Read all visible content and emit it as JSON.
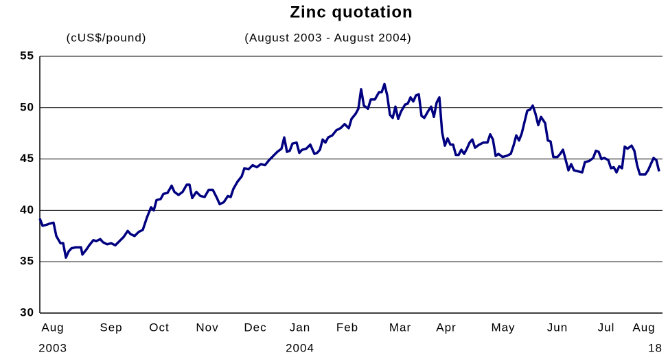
{
  "chart_data": {
    "type": "line",
    "title": "Zinc quotation",
    "subtitle": "(August 2003 - August 2004)",
    "y_label": "(cUS$/pound)",
    "xlim": [
      0,
      907
    ],
    "xticks": [
      {
        "value": 19,
        "label": "Aug"
      },
      {
        "value": 104,
        "label": "Sep"
      },
      {
        "value": 174,
        "label": "Oct"
      },
      {
        "value": 244,
        "label": "Nov"
      },
      {
        "value": 314,
        "label": "Dec"
      },
      {
        "value": 379,
        "label": "Jan"
      },
      {
        "value": 448,
        "label": "Feb"
      },
      {
        "value": 525,
        "label": "Mar"
      },
      {
        "value": 592,
        "label": "Apr"
      },
      {
        "value": 675,
        "label": "May"
      },
      {
        "value": 754,
        "label": "Jun"
      },
      {
        "value": 825,
        "label": "Jul"
      },
      {
        "value": 880,
        "label": "Aug"
      }
    ],
    "xticks2": [
      {
        "value": 19,
        "label": "2003"
      },
      {
        "value": 379,
        "label": "2004"
      },
      {
        "value": 907,
        "label": "18"
      }
    ],
    "ylim": [
      30,
      55
    ],
    "yticks": [
      30,
      35,
      40,
      45,
      50,
      55
    ],
    "grid": true,
    "series": [
      {
        "name": "Zinc",
        "color": "#000080",
        "x": [
          0,
          4,
          10,
          14,
          20,
          24,
          30,
          34,
          38,
          42,
          46,
          52,
          60,
          62,
          68,
          72,
          78,
          82,
          88,
          92,
          98,
          104,
          110,
          116,
          122,
          128,
          132,
          138,
          144,
          150,
          156,
          162,
          166,
          170,
          176,
          180,
          186,
          192,
          196,
          202,
          208,
          214,
          218,
          222,
          228,
          234,
          240,
          246,
          252,
          258,
          262,
          268,
          274,
          278,
          282,
          288,
          294,
          298,
          304,
          310,
          316,
          322,
          328,
          334,
          340,
          346,
          352,
          356,
          360,
          364,
          368,
          374,
          378,
          382,
          388,
          394,
          400,
          404,
          408,
          412,
          416,
          420,
          426,
          432,
          438,
          444,
          450,
          454,
          460,
          464,
          468,
          472,
          478,
          482,
          488,
          494,
          498,
          502,
          506,
          510,
          514,
          518,
          522,
          526,
          532,
          536,
          540,
          544,
          548,
          552,
          556,
          560,
          566,
          570,
          574,
          578,
          582,
          586,
          590,
          594,
          598,
          602,
          606,
          610,
          614,
          618,
          622,
          626,
          630,
          634,
          640,
          646,
          652,
          656,
          660,
          664,
          668,
          674,
          680,
          686,
          690,
          694,
          698,
          702,
          706,
          710,
          714,
          718,
          722,
          726,
          730,
          736,
          740,
          744,
          748,
          754,
          758,
          762,
          766,
          770,
          774,
          778,
          784,
          790,
          794,
          800,
          806,
          810,
          814,
          818,
          822,
          828,
          832,
          836,
          840,
          844,
          848,
          852,
          856,
          862,
          866,
          870,
          874,
          882,
          886,
          890,
          894,
          898,
          902
        ],
        "values": [
          39.2,
          38.5,
          38.6,
          38.7,
          38.8,
          37.5,
          36.8,
          36.8,
          35.4,
          36.0,
          36.3,
          36.4,
          36.4,
          35.7,
          36.2,
          36.6,
          37.1,
          37.0,
          37.2,
          36.9,
          36.7,
          36.8,
          36.6,
          37.0,
          37.4,
          38.0,
          37.7,
          37.5,
          37.9,
          38.1,
          39.3,
          40.3,
          40.0,
          41.0,
          41.1,
          41.6,
          41.7,
          42.4,
          41.8,
          41.5,
          41.8,
          42.5,
          42.5,
          41.2,
          41.8,
          41.4,
          41.3,
          42.0,
          42.0,
          41.2,
          40.6,
          40.8,
          41.4,
          41.3,
          42.1,
          42.8,
          43.3,
          44.1,
          44.0,
          44.4,
          44.2,
          44.5,
          44.4,
          44.9,
          45.3,
          45.7,
          46.0,
          47.1,
          45.7,
          45.8,
          46.5,
          46.6,
          45.6,
          45.9,
          46.0,
          46.4,
          45.5,
          45.6,
          45.9,
          46.9,
          46.6,
          47.1,
          47.3,
          47.8,
          48.0,
          48.4,
          48.0,
          48.9,
          49.4,
          49.9,
          51.8,
          50.2,
          49.9,
          50.8,
          50.8,
          51.5,
          51.5,
          52.3,
          51.2,
          49.3,
          49.0,
          50.1,
          48.9,
          49.6,
          50.3,
          50.4,
          51.0,
          50.6,
          51.2,
          51.3,
          49.2,
          49.0,
          49.7,
          50.1,
          49.1,
          50.5,
          51.0,
          47.6,
          46.3,
          47.0,
          46.4,
          46.4,
          45.4,
          45.4,
          45.9,
          45.5,
          46.0,
          46.6,
          46.9,
          46.1,
          46.4,
          46.6,
          46.6,
          47.4,
          46.9,
          45.3,
          45.5,
          45.2,
          45.3,
          45.5,
          46.3,
          47.3,
          46.8,
          47.5,
          48.6,
          49.7,
          49.8,
          50.2,
          49.4,
          48.3,
          49.1,
          48.5,
          46.8,
          46.7,
          45.2,
          45.2,
          45.5,
          45.9,
          44.9,
          43.9,
          44.5,
          43.9,
          43.8,
          43.7,
          44.7,
          44.8,
          45.1,
          45.8,
          45.7,
          45.0,
          45.1,
          44.9,
          44.1,
          44.2,
          43.7,
          44.3,
          44.1,
          46.2,
          46.0,
          46.3,
          45.8,
          44.4,
          43.5,
          43.5,
          43.9,
          44.5,
          45.1,
          44.9,
          43.8
        ]
      }
    ]
  }
}
